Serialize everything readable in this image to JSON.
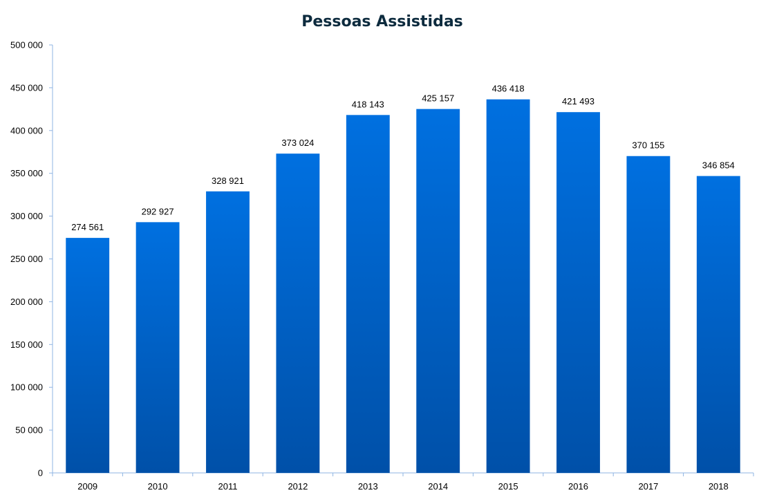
{
  "chart_data": {
    "type": "bar",
    "title": "Pessoas Assistidas",
    "xlabel": "",
    "ylabel": "",
    "categories": [
      "2009",
      "2010",
      "2011",
      "2012",
      "2013",
      "2014",
      "2015",
      "2016",
      "2017",
      "2018"
    ],
    "values": [
      274561,
      292927,
      328921,
      373024,
      418143,
      425157,
      436418,
      421493,
      370155,
      346854
    ],
    "value_labels": [
      "274 561",
      "292 927",
      "328 921",
      "373 024",
      "418 143",
      "425 157",
      "436 418",
      "421 493",
      "370 155",
      "346 854"
    ],
    "ylim": [
      0,
      500000
    ],
    "y_ticks": [
      0,
      50000,
      100000,
      150000,
      200000,
      250000,
      300000,
      350000,
      400000,
      450000,
      500000
    ],
    "y_tick_labels": [
      "0",
      "50 000",
      "100 000",
      "150 000",
      "200 000",
      "250 000",
      "300 000",
      "350 000",
      "400 000",
      "450 000",
      "500 000"
    ],
    "grid": false,
    "legend": "none",
    "colors": {
      "bar_top": "#0070e0",
      "bar_bottom": "#0050a8",
      "axis": "#8fb4e3",
      "title": "#0d2b3e"
    }
  }
}
